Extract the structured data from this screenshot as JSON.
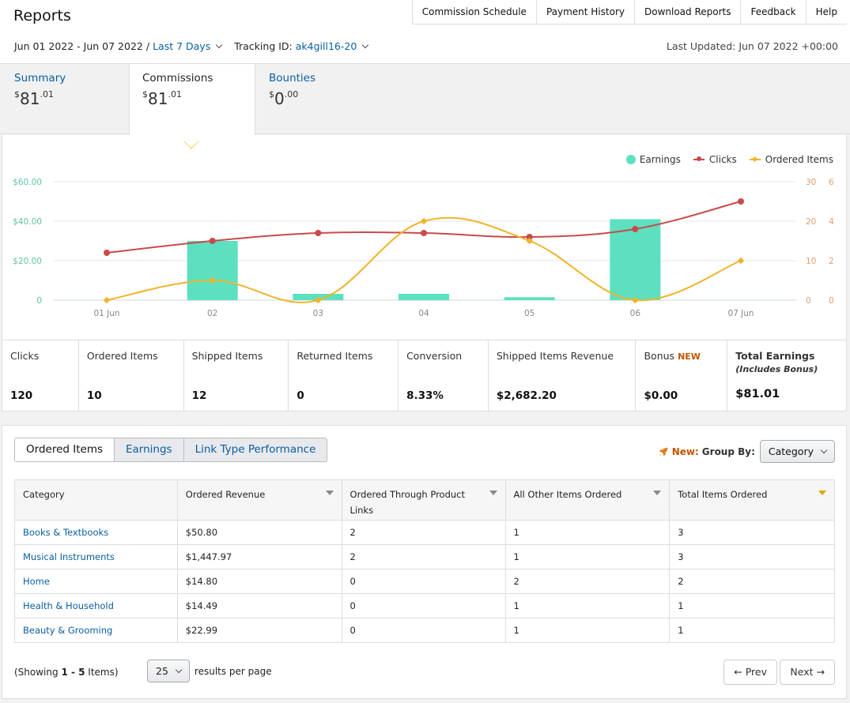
{
  "header": {
    "title": "Reports",
    "nav": [
      "Commission Schedule",
      "Payment History",
      "Download Reports",
      "Feedback",
      "Help"
    ],
    "date_range": "Jun 01 2022 - Jun 07 2022",
    "date_sep": "/",
    "period": "Last 7 Days",
    "tracking_label": "Tracking ID:",
    "tracking_id": "ak4gill16-20",
    "last_updated": "Last Updated: Jun 07 2022 +00:00"
  },
  "summary_tabs": [
    {
      "name": "Summary",
      "dollar": "$",
      "whole": "81",
      "cents": ".01"
    },
    {
      "name": "Commissions",
      "dollar": "$",
      "whole": "81",
      "cents": ".01"
    },
    {
      "name": "Bounties",
      "dollar": "$",
      "whole": "0",
      "cents": ".00"
    }
  ],
  "colors": {
    "earnings": "#5ce0c0",
    "clicks": "#c94a4a",
    "ordered": "#f0b429",
    "link": "#0a5fa0",
    "new": "#c45500"
  },
  "chart_data": {
    "type": "bar",
    "categories": [
      "01 Jun",
      "02",
      "03",
      "04",
      "05",
      "06",
      "07 Jun"
    ],
    "series": [
      {
        "name": "Earnings",
        "type": "bar",
        "axis": "left",
        "values": [
          0,
          30,
          3.2,
          3.2,
          1.5,
          41,
          0
        ]
      },
      {
        "name": "Clicks",
        "type": "line",
        "axis": "right",
        "values": [
          12,
          15,
          17,
          17,
          16,
          18,
          25
        ]
      },
      {
        "name": "Ordered Items",
        "type": "line",
        "axis": "right2",
        "values": [
          0,
          1,
          0,
          4,
          3,
          0,
          2
        ]
      }
    ],
    "left_axis": {
      "ticks": [
        "$60.00",
        "$40.00",
        "$20.00",
        "0"
      ],
      "max": 60
    },
    "right_axis": {
      "ticks": [
        "30",
        "20",
        "10",
        "0"
      ],
      "max": 30
    },
    "right2_axis": {
      "ticks": [
        "6",
        "4",
        "2",
        "0"
      ],
      "max": 6
    },
    "grid": true,
    "legend": "top-right"
  },
  "stats": [
    {
      "label": "Clicks",
      "value": "120"
    },
    {
      "label": "Ordered Items",
      "value": "10"
    },
    {
      "label": "Shipped Items",
      "value": "12"
    },
    {
      "label": "Returned Items",
      "value": "0"
    },
    {
      "label": "Conversion",
      "value": "8.33%"
    },
    {
      "label": "Shipped Items Revenue",
      "value": "$2,682.20"
    },
    {
      "label": "Bonus",
      "badge": "NEW",
      "value": "$0.00"
    },
    {
      "label": "Total Earnings",
      "sub": "(Includes Bonus)",
      "value": "$81.01"
    }
  ],
  "report_tabs": [
    "Ordered Items",
    "Earnings",
    "Link Type Performance"
  ],
  "group_by": {
    "new": "New:",
    "label": "Group By:",
    "value": "Category"
  },
  "table": {
    "columns": [
      "Category",
      "Ordered Revenue",
      "Ordered Through Product Links",
      "All Other Items Ordered",
      "Total Items Ordered"
    ],
    "rows": [
      [
        "Books & Textbooks",
        "$50.80",
        "2",
        "1",
        "3"
      ],
      [
        "Musical Instruments",
        "$1,447.97",
        "2",
        "1",
        "3"
      ],
      [
        "Home",
        "$14.80",
        "0",
        "2",
        "2"
      ],
      [
        "Health & Household",
        "$14.49",
        "0",
        "1",
        "1"
      ],
      [
        "Beauty & Grooming",
        "$22.99",
        "0",
        "1",
        "1"
      ]
    ]
  },
  "footer": {
    "showing_pre": "(Showing ",
    "showing_range": "1 - 5",
    "showing_post": " Items)",
    "per_page": "25",
    "per_page_label": "results per page",
    "prev": "← Prev",
    "next": "Next →"
  }
}
